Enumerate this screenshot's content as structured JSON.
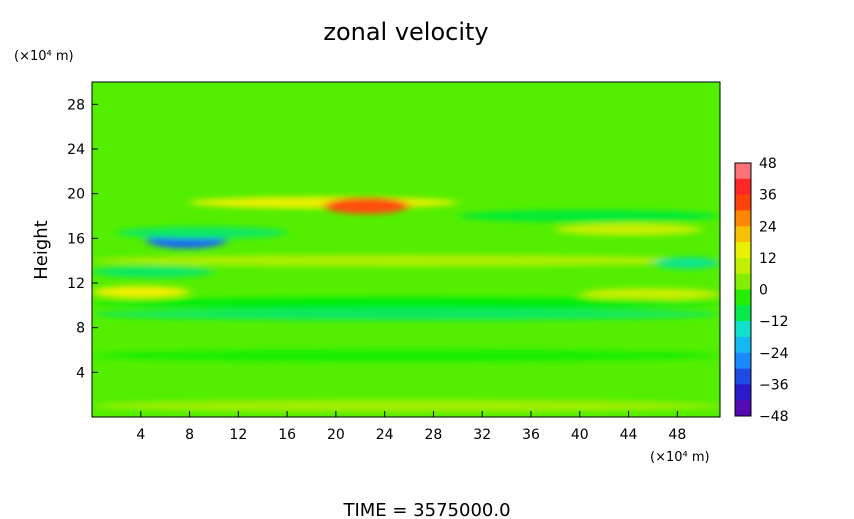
{
  "chart_data": {
    "type": "heatmap",
    "title": "zonal velocity",
    "ylabel": "Height",
    "y_unit": "(×10⁴ m)",
    "x_unit": "(×10⁴ m)",
    "xlim": [
      0,
      51.5
    ],
    "ylim": [
      0,
      30
    ],
    "x_ticks": [
      4,
      8,
      12,
      16,
      20,
      24,
      28,
      32,
      36,
      40,
      44,
      48
    ],
    "y_ticks": [
      4,
      8,
      12,
      16,
      20,
      24,
      28
    ],
    "colorbar": {
      "range": [
        -48,
        48
      ],
      "ticks": [
        48,
        36,
        24,
        12,
        0,
        -12,
        -24,
        -36,
        -48
      ],
      "stops": [
        "#6a00a8",
        "#1f1fd0",
        "#1a8cff",
        "#10e0e0",
        "#00ee00",
        "#a8ee00",
        "#f0f000",
        "#ff8a00",
        "#ff1010",
        "#ff9aa0"
      ]
    },
    "background_value": 0,
    "bands": [
      {
        "y": 19.2,
        "value": 15,
        "x_start": 8,
        "x_end": 30
      },
      {
        "y": 18.9,
        "value": 32,
        "x_start": 19,
        "x_end": 26
      },
      {
        "y": 15.8,
        "value": -30,
        "x_start": 4.5,
        "x_end": 11
      },
      {
        "y": 16.5,
        "value": -10,
        "x_start": 2,
        "x_end": 16
      },
      {
        "y": 16.8,
        "value": 10,
        "x_start": 38,
        "x_end": 50
      },
      {
        "y": 14.0,
        "value": 6,
        "x_start": 0,
        "x_end": 51.5
      },
      {
        "y": 13.0,
        "value": -10,
        "x_start": 0,
        "x_end": 10
      },
      {
        "y": 13.8,
        "value": -12,
        "x_start": 46,
        "x_end": 51.5
      },
      {
        "y": 11.2,
        "value": 16,
        "x_start": 0,
        "x_end": 8
      },
      {
        "y": 11.0,
        "value": 10,
        "x_start": 40,
        "x_end": 51.5
      },
      {
        "y": 10.2,
        "value": -6,
        "x_start": 0,
        "x_end": 51.5
      },
      {
        "y": 9.2,
        "value": -10,
        "x_start": 0,
        "x_end": 51.5
      },
      {
        "y": 18.0,
        "value": -8,
        "x_start": 30,
        "x_end": 51.5
      },
      {
        "y": 1.0,
        "value": 5,
        "x_start": 0,
        "x_end": 51.5
      },
      {
        "y": 5.5,
        "value": -4,
        "x_start": 0,
        "x_end": 51.5
      }
    ],
    "footer": "TIME  =  3575000.0"
  }
}
